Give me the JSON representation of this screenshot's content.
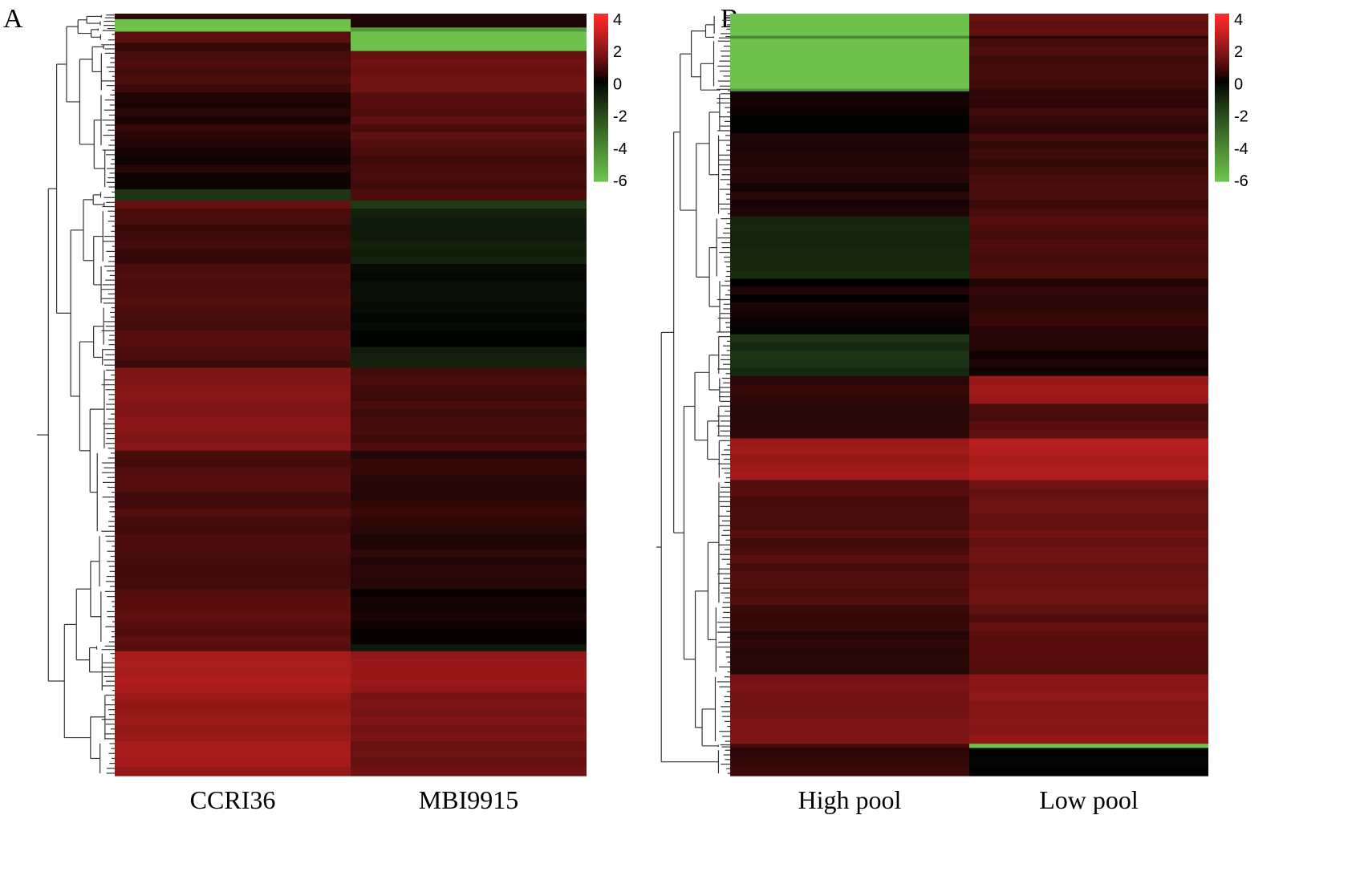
{
  "chart_data": [
    {
      "type": "heatmap",
      "panel": "A",
      "title": "",
      "columns": [
        "CCRI36",
        "MBI9915"
      ],
      "colorbar": {
        "ticks": [
          "4",
          "2",
          "0",
          "-2",
          "-4",
          "-6"
        ],
        "range": [
          -6,
          4
        ],
        "colors": {
          "high": "#ff2a2a",
          "mid": "#000000",
          "low": "#6cc24a"
        }
      },
      "bands": [
        {
          "rows": 4,
          "values": [
            0.5,
            0.3
          ]
        },
        {
          "rows": 6,
          "values": [
            -6,
            0.4
          ]
        },
        {
          "rows": 3,
          "values": [
            -6,
            -4.5
          ]
        },
        {
          "rows": 8,
          "values": [
            1.2,
            -6
          ]
        },
        {
          "rows": 6,
          "values": [
            0.6,
            -6
          ]
        },
        {
          "rows": 30,
          "values": [
            0.8,
            1.4
          ]
        },
        {
          "rows": 40,
          "values": [
            0.4,
            1.0
          ]
        },
        {
          "rows": 30,
          "values": [
            0.2,
            0.8
          ]
        },
        {
          "rows": 8,
          "values": [
            -1.5,
            0.9
          ]
        },
        {
          "rows": 6,
          "values": [
            1.3,
            -1.4
          ]
        },
        {
          "rows": 40,
          "values": [
            0.7,
            -0.7
          ]
        },
        {
          "rows": 30,
          "values": [
            0.9,
            -0.3
          ]
        },
        {
          "rows": 30,
          "values": [
            0.9,
            -0.2
          ]
        },
        {
          "rows": 15,
          "values": [
            0.8,
            -0.8
          ]
        },
        {
          "rows": 60,
          "values": [
            1.7,
            0.8
          ]
        },
        {
          "rows": 60,
          "values": [
            0.9,
            0.5
          ]
        },
        {
          "rows": 40,
          "values": [
            0.9,
            0.4
          ]
        },
        {
          "rows": 40,
          "values": [
            1.0,
            0.2
          ]
        },
        {
          "rows": 5,
          "values": [
            1.2,
            -0.5
          ]
        },
        {
          "rows": 30,
          "values": [
            2.4,
            2.1
          ]
        },
        {
          "rows": 35,
          "values": [
            2.0,
            1.5
          ]
        },
        {
          "rows": 25,
          "values": [
            2.2,
            1.3
          ]
        }
      ]
    },
    {
      "type": "heatmap",
      "panel": "B",
      "title": "",
      "columns": [
        "High pool",
        "Low pool"
      ],
      "colorbar": {
        "ticks": [
          "4",
          "2",
          "0",
          "-2",
          "-4",
          "-6"
        ],
        "range": [
          -6,
          4
        ],
        "colors": {
          "high": "#ff2a2a",
          "mid": "#000000",
          "low": "#6cc24a"
        }
      },
      "bands": [
        {
          "rows": 16,
          "values": [
            -6,
            1.2
          ]
        },
        {
          "rows": 2,
          "values": [
            -4,
            0.4
          ]
        },
        {
          "rows": 36,
          "values": [
            -6,
            0.8
          ]
        },
        {
          "rows": 2,
          "values": [
            -4.5,
            0.4
          ]
        },
        {
          "rows": 30,
          "values": [
            0.1,
            0.6
          ]
        },
        {
          "rows": 60,
          "values": [
            0.3,
            0.7
          ]
        },
        {
          "rows": 45,
          "values": [
            -1.0,
            0.9
          ]
        },
        {
          "rows": 40,
          "values": [
            0.1,
            0.5
          ]
        },
        {
          "rows": 30,
          "values": [
            -1.2,
            0.3
          ]
        },
        {
          "rows": 20,
          "values": [
            0.6,
            2.2
          ]
        },
        {
          "rows": 25,
          "values": [
            0.4,
            1.0
          ]
        },
        {
          "rows": 30,
          "values": [
            2.2,
            2.5
          ]
        },
        {
          "rows": 90,
          "values": [
            0.9,
            1.3
          ]
        },
        {
          "rows": 50,
          "values": [
            0.5,
            1.1
          ]
        },
        {
          "rows": 50,
          "values": [
            1.6,
            1.9
          ]
        },
        {
          "rows": 3,
          "values": [
            0.6,
            -6
          ]
        },
        {
          "rows": 20,
          "values": [
            0.5,
            0.0
          ]
        }
      ]
    }
  ]
}
